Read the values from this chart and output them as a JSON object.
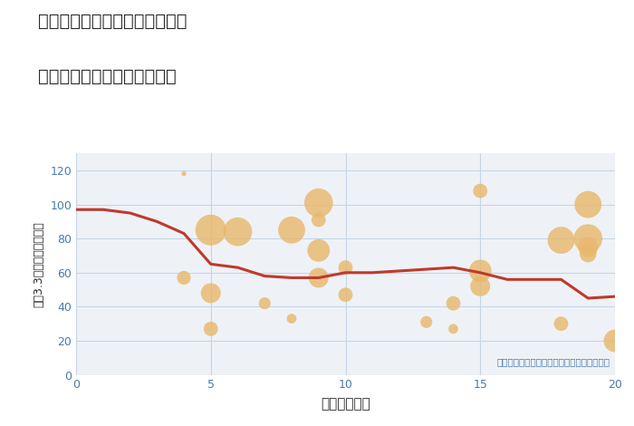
{
  "title_line1": "岐阜県本巣郡北方町柱本白坪の",
  "title_line2": "駅距離別中古マンション価格",
  "xlabel": "駅距離（分）",
  "ylabel": "坪（3.3㎡）単価（万円）",
  "background_color": "#ffffff",
  "plot_bg_color": "#eef2f7",
  "grid_color": "#c5d5e5",
  "line_color": "#c0392b",
  "bubble_color": "#e8b86d",
  "bubble_alpha": 0.82,
  "annotation_color": "#4a7aaa",
  "annotation_text": "円の大きさは、取引のあった物件面積を示す",
  "tick_color": "#4a7aaa",
  "text_color": "#2a2a2a",
  "xlim": [
    0,
    20
  ],
  "ylim": [
    0,
    130
  ],
  "xticks": [
    0,
    5,
    10,
    15,
    20
  ],
  "yticks": [
    0,
    20,
    40,
    60,
    80,
    100,
    120
  ],
  "line_x": [
    0,
    1,
    2,
    3,
    4,
    5,
    6,
    7,
    8,
    9,
    10,
    11,
    12,
    13,
    14,
    15,
    16,
    17,
    18,
    19,
    20
  ],
  "line_y": [
    97,
    97,
    95,
    90,
    83,
    65,
    63,
    58,
    57,
    57,
    60,
    60,
    61,
    62,
    63,
    60,
    56,
    56,
    56,
    45,
    46
  ],
  "scatter_x": [
    4,
    4,
    5,
    5,
    5,
    6,
    7,
    8,
    8,
    9,
    9,
    9,
    9,
    10,
    10,
    13,
    14,
    14,
    15,
    15,
    15,
    18,
    18,
    19,
    19,
    19,
    19,
    20
  ],
  "scatter_y": [
    118,
    57,
    85,
    48,
    27,
    84,
    42,
    85,
    33,
    101,
    91,
    73,
    57,
    63,
    47,
    31,
    27,
    42,
    108,
    61,
    52,
    79,
    30,
    100,
    80,
    75,
    71,
    20
  ],
  "scatter_s": [
    15,
    120,
    600,
    250,
    130,
    520,
    90,
    460,
    60,
    520,
    130,
    320,
    250,
    130,
    130,
    90,
    60,
    130,
    130,
    320,
    250,
    460,
    130,
    460,
    520,
    250,
    180,
    320
  ]
}
